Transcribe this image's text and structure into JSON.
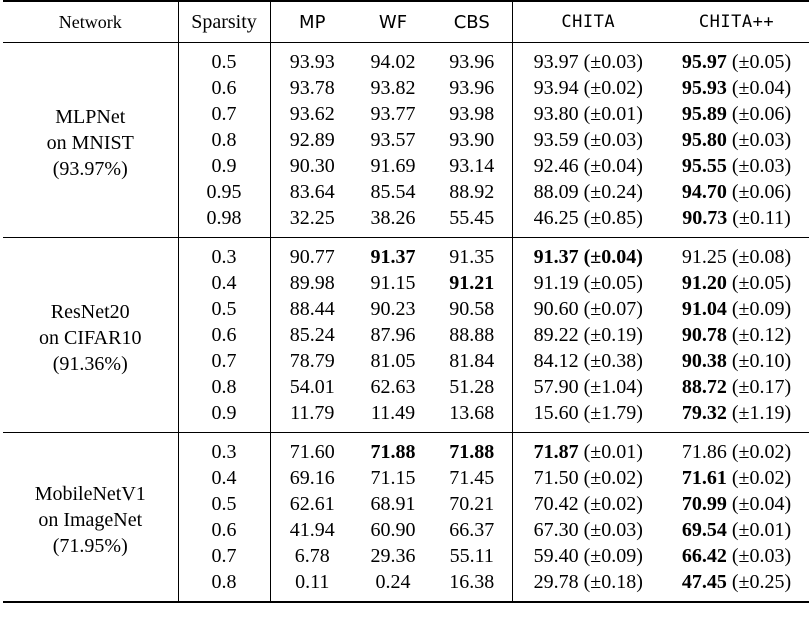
{
  "headers": {
    "network": "Network",
    "sparsity": "Sparsity",
    "mp": "MP",
    "wf": "WF",
    "cbs": "CBS",
    "chita": "CHITA",
    "chitapp": "CHITA++"
  },
  "groups": [
    {
      "name": [
        "MLPNet",
        "on MNIST",
        "(93.97%)"
      ],
      "rows": [
        {
          "s": "0.5",
          "mp": "93.93",
          "wf": "94.02",
          "cbs": "93.96",
          "chita": "93.97",
          "chita_sd": " (±0.03)",
          "pp": "95.97",
          "pp_sd": " (±0.05)",
          "bold": [
            "pp"
          ]
        },
        {
          "s": "0.6",
          "mp": "93.78",
          "wf": "93.82",
          "cbs": "93.96",
          "chita": "93.94",
          "chita_sd": " (±0.02)",
          "pp": "95.93",
          "pp_sd": " (±0.04)",
          "bold": [
            "pp"
          ]
        },
        {
          "s": "0.7",
          "mp": "93.62",
          "wf": "93.77",
          "cbs": "93.98",
          "chita": "93.80",
          "chita_sd": " (±0.01)",
          "pp": "95.89",
          "pp_sd": " (±0.06)",
          "bold": [
            "pp"
          ]
        },
        {
          "s": "0.8",
          "mp": "92.89",
          "wf": "93.57",
          "cbs": "93.90",
          "chita": "93.59",
          "chita_sd": " (±0.03)",
          "pp": "95.80",
          "pp_sd": " (±0.03)",
          "bold": [
            "pp"
          ]
        },
        {
          "s": "0.9",
          "mp": "90.30",
          "wf": "91.69",
          "cbs": "93.14",
          "chita": "92.46",
          "chita_sd": " (±0.04)",
          "pp": "95.55",
          "pp_sd": " (±0.03)",
          "bold": [
            "pp"
          ]
        },
        {
          "s": "0.95",
          "mp": "83.64",
          "wf": "85.54",
          "cbs": "88.92",
          "chita": "88.09",
          "chita_sd": " (±0.24)",
          "pp": "94.70",
          "pp_sd": " (±0.06)",
          "bold": [
            "pp"
          ]
        },
        {
          "s": "0.98",
          "mp": "32.25",
          "wf": "38.26",
          "cbs": "55.45",
          "chita": "46.25",
          "chita_sd": " (±0.85)",
          "pp": "90.73",
          "pp_sd": " (±0.11)",
          "bold": [
            "pp"
          ]
        }
      ]
    },
    {
      "name": [
        "ResNet20",
        "on CIFAR10",
        "(91.36%)"
      ],
      "rows": [
        {
          "s": "0.3",
          "mp": "90.77",
          "wf": "91.37",
          "cbs": "91.35",
          "chita": "91.37",
          "chita_sd": " (±0.04)",
          "pp": "91.25",
          "pp_sd": " (±0.08)",
          "bold": [
            "wf",
            "chita",
            "chita_sd"
          ]
        },
        {
          "s": "0.4",
          "mp": "89.98",
          "wf": "91.15",
          "cbs": "91.21",
          "chita": "91.19",
          "chita_sd": " (±0.05)",
          "pp": "91.20",
          "pp_sd": " (±0.05)",
          "bold": [
            "cbs",
            "pp"
          ]
        },
        {
          "s": "0.5",
          "mp": "88.44",
          "wf": "90.23",
          "cbs": "90.58",
          "chita": "90.60",
          "chita_sd": " (±0.07)",
          "pp": "91.04",
          "pp_sd": " (±0.09)",
          "bold": [
            "pp"
          ]
        },
        {
          "s": "0.6",
          "mp": "85.24",
          "wf": "87.96",
          "cbs": "88.88",
          "chita": "89.22",
          "chita_sd": " (±0.19)",
          "pp": "90.78",
          "pp_sd": " (±0.12)",
          "bold": [
            "pp"
          ]
        },
        {
          "s": "0.7",
          "mp": "78.79",
          "wf": "81.05",
          "cbs": "81.84",
          "chita": "84.12",
          "chita_sd": " (±0.38)",
          "pp": "90.38",
          "pp_sd": " (±0.10)",
          "bold": [
            "pp"
          ]
        },
        {
          "s": "0.8",
          "mp": "54.01",
          "wf": "62.63",
          "cbs": "51.28",
          "chita": "57.90",
          "chita_sd": " (±1.04)",
          "pp": "88.72",
          "pp_sd": " (±0.17)",
          "bold": [
            "pp"
          ]
        },
        {
          "s": "0.9",
          "mp": "11.79",
          "wf": "11.49",
          "cbs": "13.68",
          "chita": "15.60",
          "chita_sd": " (±1.79)",
          "pp": "79.32",
          "pp_sd": " (±1.19)",
          "bold": [
            "pp"
          ]
        }
      ]
    },
    {
      "name": [
        "MobileNetV1",
        "on ImageNet",
        "(71.95%)"
      ],
      "rows": [
        {
          "s": "0.3",
          "mp": "71.60",
          "wf": "71.88",
          "cbs": "71.88",
          "chita": "71.87",
          "chita_sd": " (±0.01)",
          "pp": "71.86",
          "pp_sd": " (±0.02)",
          "bold": [
            "wf",
            "cbs",
            "chita"
          ]
        },
        {
          "s": "0.4",
          "mp": "69.16",
          "wf": "71.15",
          "cbs": "71.45",
          "chita": "71.50",
          "chita_sd": " (±0.02)",
          "pp": "71.61",
          "pp_sd": " (±0.02)",
          "bold": [
            "pp"
          ]
        },
        {
          "s": "0.5",
          "mp": "62.61",
          "wf": "68.91",
          "cbs": "70.21",
          "chita": "70.42",
          "chita_sd": " (±0.02)",
          "pp": "70.99",
          "pp_sd": " (±0.04)",
          "bold": [
            "pp"
          ]
        },
        {
          "s": "0.6",
          "mp": "41.94",
          "wf": "60.90",
          "cbs": "66.37",
          "chita": "67.30",
          "chita_sd": " (±0.03)",
          "pp": "69.54",
          "pp_sd": " (±0.01)",
          "bold": [
            "pp"
          ]
        },
        {
          "s": "0.7",
          "mp": "6.78",
          "wf": "29.36",
          "cbs": "55.11",
          "chita": "59.40",
          "chita_sd": " (±0.09)",
          "pp": "66.42",
          "pp_sd": " (±0.03)",
          "bold": [
            "pp"
          ]
        },
        {
          "s": "0.8",
          "mp": "0.11",
          "wf": "0.24",
          "cbs": "16.38",
          "chita": "29.78",
          "chita_sd": " (±0.18)",
          "pp": "47.45",
          "pp_sd": " (±0.25)",
          "bold": [
            "pp"
          ]
        }
      ]
    }
  ]
}
